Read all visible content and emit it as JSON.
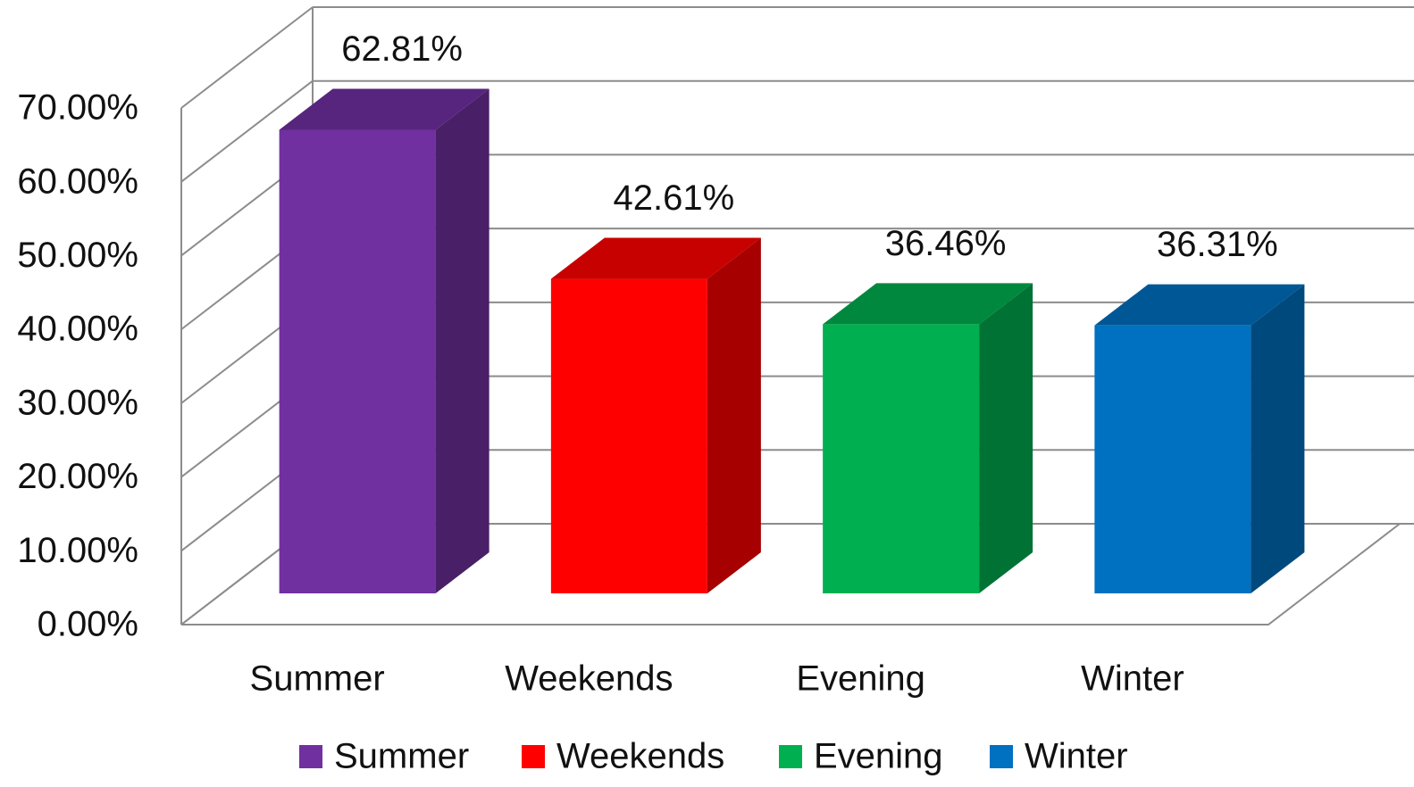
{
  "chart_data": {
    "type": "bar3d",
    "categories": [
      "Summer",
      "Weekends",
      "Evening",
      "Winter"
    ],
    "values": [
      62.81,
      42.61,
      36.46,
      36.31
    ],
    "value_labels": [
      "62.81%",
      "42.61%",
      "36.46%",
      "36.31%"
    ],
    "colors": [
      "#7030a0",
      "#ff0000",
      "#00b050",
      "#0070c0"
    ],
    "ylim": [
      0,
      70
    ],
    "yticks": [
      {
        "value": 0,
        "label": "0.00%"
      },
      {
        "value": 10,
        "label": "10.00%"
      },
      {
        "value": 20,
        "label": "20.00%"
      },
      {
        "value": 30,
        "label": "30.00%"
      },
      {
        "value": 40,
        "label": "40.00%"
      },
      {
        "value": 50,
        "label": "50.00%"
      },
      {
        "value": 60,
        "label": "60.00%"
      },
      {
        "value": 70,
        "label": "70.00%"
      }
    ],
    "grid": true,
    "legend": "bottom"
  }
}
